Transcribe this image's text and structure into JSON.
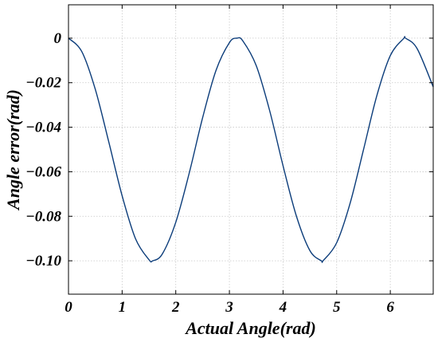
{
  "chart_data": {
    "type": "line",
    "title": "",
    "xlabel": "Actual Angle(rad)",
    "ylabel": "Angle error(rad)",
    "xlim": [
      0,
      6.8
    ],
    "ylim": [
      -0.115,
      0.015
    ],
    "xticks": [
      0,
      1,
      2,
      3,
      4,
      5,
      6
    ],
    "xtick_labels": [
      "0",
      "1",
      "2",
      "3",
      "4",
      "5",
      "6"
    ],
    "yticks": [
      0,
      -0.02,
      -0.04,
      -0.06,
      -0.08,
      -0.1
    ],
    "ytick_labels": [
      "0",
      "−0.02",
      "−0.04",
      "−0.06",
      "−0.08",
      "−0.10"
    ],
    "grid": true,
    "legend": "none",
    "series": [
      {
        "color": "#0b3c7a",
        "x": [
          0,
          0.25,
          0.5,
          0.75,
          1.0,
          1.25,
          1.5,
          1.5708,
          1.75,
          2.0,
          2.25,
          2.5,
          2.75,
          3.0,
          3.1416,
          3.25,
          3.5,
          3.75,
          4.0,
          4.25,
          4.5,
          4.7124,
          4.75,
          5.0,
          5.25,
          5.5,
          5.75,
          6.0,
          6.25,
          6.2832,
          6.5,
          6.8
        ],
        "y": [
          0,
          -0.0061,
          -0.023,
          -0.0465,
          -0.0708,
          -0.0901,
          -0.0995,
          -0.1,
          -0.0969,
          -0.0827,
          -0.0607,
          -0.0358,
          -0.0145,
          -0.002,
          0,
          -0.0012,
          -0.0123,
          -0.0325,
          -0.0573,
          -0.08,
          -0.0954,
          -0.1,
          -0.0999,
          -0.0919,
          -0.0742,
          -0.0501,
          -0.0257,
          -0.0078,
          -0.0001,
          0,
          -0.0047,
          -0.0219
        ]
      }
    ]
  }
}
